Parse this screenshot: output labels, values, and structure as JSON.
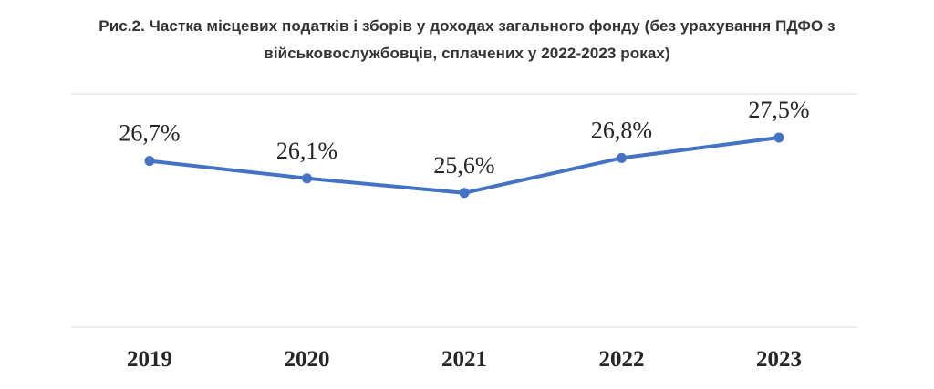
{
  "title_lines": [
    "Рис.2. Частка місцевих податків і зборів у доходах загального фонду (без урахування ПДФО з",
    "військовослужбовців, сплачених у 2022-2023 роках)"
  ],
  "colors": {
    "series": "#4472c4",
    "grid": "#d9d9d9",
    "text": "#262626",
    "title": "#333333"
  },
  "chart_data": {
    "type": "line",
    "title": "Рис.2. Частка місцевих податків і зборів у доходах загального фонду (без урахування ПДФО з військовослужбовців, сплачених у 2022-2023 роках)",
    "categories": [
      "2019",
      "2020",
      "2021",
      "2022",
      "2023"
    ],
    "series": [
      {
        "values": [
          26.7,
          26.1,
          25.6,
          26.8,
          27.5
        ],
        "labels": [
          "26,7%",
          "26,1%",
          "25,6%",
          "26,8%",
          "27,5%"
        ]
      }
    ],
    "unit": "%",
    "ylim": [
      21.0,
      29.0
    ],
    "grid": true,
    "legend": "none",
    "xlabel": "",
    "ylabel": ""
  }
}
